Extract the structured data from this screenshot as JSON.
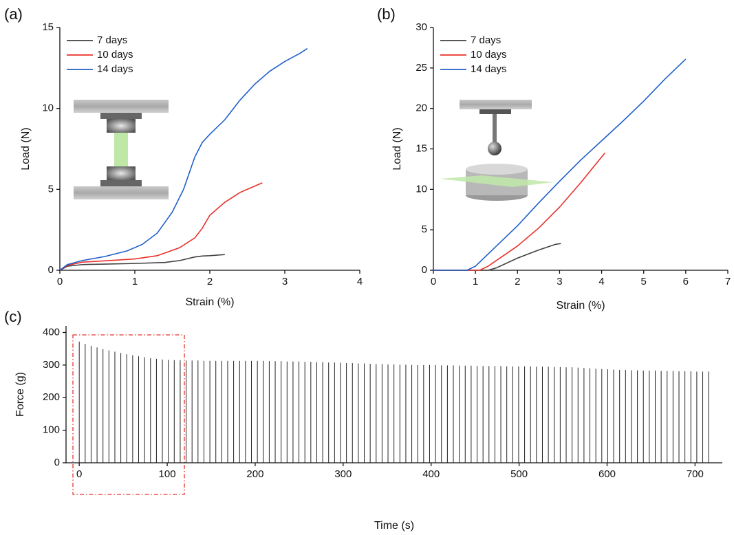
{
  "chart_data": [
    {
      "type": "line",
      "panel_label": "(a)",
      "xlabel": "Strain (%)",
      "ylabel": "Load (N)",
      "xlim": [
        0,
        4
      ],
      "xticks": [
        0,
        1,
        2,
        3,
        4
      ],
      "ylim": [
        0,
        15
      ],
      "yticks": [
        0,
        5,
        10,
        15
      ],
      "grid": false,
      "legend": "upper left",
      "series": [
        {
          "name": "7 days",
          "color": "#404040",
          "x": [
            0,
            0.1,
            0.3,
            0.6,
            1.0,
            1.4,
            1.6,
            1.8,
            1.9,
            2.0,
            2.2
          ],
          "values": [
            0,
            0.25,
            0.35,
            0.38,
            0.42,
            0.48,
            0.6,
            0.82,
            0.88,
            0.9,
            0.97
          ]
        },
        {
          "name": "10 days",
          "color": "#e8302a",
          "x": [
            0,
            0.1,
            0.3,
            0.6,
            1.0,
            1.3,
            1.6,
            1.8,
            1.9,
            2.0,
            2.2,
            2.4,
            2.6,
            2.7
          ],
          "values": [
            0,
            0.3,
            0.5,
            0.58,
            0.7,
            0.9,
            1.4,
            2.0,
            2.6,
            3.4,
            4.2,
            4.8,
            5.2,
            5.4
          ]
        },
        {
          "name": "14 days",
          "color": "#1f5fc8",
          "x": [
            0,
            0.1,
            0.3,
            0.6,
            0.9,
            1.1,
            1.3,
            1.5,
            1.65,
            1.8,
            1.9,
            2.0,
            2.2,
            2.4,
            2.6,
            2.8,
            3.0,
            3.2,
            3.3
          ],
          "values": [
            0,
            0.35,
            0.6,
            0.85,
            1.2,
            1.6,
            2.3,
            3.6,
            5.0,
            7.0,
            7.9,
            8.4,
            9.3,
            10.5,
            11.5,
            12.3,
            12.9,
            13.4,
            13.7
          ]
        }
      ]
    },
    {
      "type": "line",
      "panel_label": "(b)",
      "xlabel": "Strain (%)",
      "ylabel": "Load (N)",
      "xlim": [
        0,
        7
      ],
      "xticks": [
        0,
        1,
        2,
        3,
        4,
        5,
        6,
        7
      ],
      "ylim": [
        0,
        30
      ],
      "yticks": [
        0,
        5,
        10,
        15,
        20,
        25,
        30
      ],
      "grid": false,
      "legend": "upper left",
      "series": [
        {
          "name": "7 days",
          "color": "#404040",
          "x": [
            0,
            1.3,
            1.5,
            2.0,
            2.5,
            2.9,
            3.03
          ],
          "values": [
            0,
            0,
            0.3,
            1.5,
            2.5,
            3.2,
            3.3
          ]
        },
        {
          "name": "10 days",
          "color": "#e8302a",
          "x": [
            0,
            1.1,
            1.3,
            2.0,
            2.5,
            3.0,
            3.5,
            4.0,
            4.08
          ],
          "values": [
            0,
            0,
            0.5,
            3.0,
            5.2,
            7.8,
            10.8,
            14.0,
            14.5
          ]
        },
        {
          "name": "14 days",
          "color": "#1f5fc8",
          "x": [
            0,
            0.8,
            1.0,
            1.5,
            2.0,
            2.5,
            3.0,
            3.5,
            4.0,
            4.5,
            5.0,
            5.5,
            6.0
          ],
          "values": [
            0,
            0,
            0.5,
            3.0,
            5.5,
            8.3,
            11.0,
            13.6,
            16.0,
            18.4,
            20.9,
            23.6,
            26.1
          ]
        }
      ]
    },
    {
      "type": "stem",
      "panel_label": "(c)",
      "xlabel": "Time (s)",
      "ylabel": "Force (g)",
      "xlim": [
        -15,
        731
      ],
      "xticks": [
        0,
        100,
        200,
        300,
        400,
        500,
        600,
        700
      ],
      "ylim": [
        0,
        420
      ],
      "yticks": [
        0,
        100,
        200,
        300,
        400
      ],
      "grid": false,
      "color": "#222222",
      "x": [
        0,
        6.75,
        13.5,
        20.25,
        27,
        33.75,
        40.5,
        47.25,
        54,
        60.75,
        67.5,
        74.25,
        81,
        87.75,
        94.5,
        101.25,
        108,
        114.75,
        121.5,
        128.25,
        135,
        141.75,
        148.5,
        155.25,
        162,
        168.75,
        175.5,
        182.25,
        189,
        195.75,
        202.5,
        209.25,
        216,
        222.75,
        229.5,
        236.25,
        243,
        249.75,
        256.5,
        263.25,
        270,
        276.75,
        283.5,
        290.25,
        297,
        303.75,
        310.5,
        317.25,
        324,
        330.75,
        337.5,
        344.25,
        351,
        357.75,
        364.5,
        371.25,
        378,
        384.75,
        391.5,
        398.25,
        405,
        411.75,
        418.5,
        425.25,
        432,
        438.75,
        445.5,
        452.25,
        459,
        465.75,
        472.5,
        479.25,
        486,
        492.75,
        499.5,
        506.25,
        513,
        519.75,
        526.5,
        533.25,
        540,
        546.75,
        553.5,
        560.25,
        567,
        573.75,
        580.5,
        587.25,
        594,
        600.75,
        607.5,
        614.25,
        621,
        627.75,
        634.5,
        641.25,
        648,
        654.75,
        661.5,
        668.25,
        675,
        681.75,
        688.5,
        695.25,
        702,
        708.75,
        715.5
      ],
      "values": [
        372,
        365,
        359,
        354,
        349,
        345,
        341,
        337,
        333,
        330,
        327,
        324,
        321,
        319,
        317,
        316,
        315,
        315,
        314,
        314,
        314,
        313,
        313,
        313,
        313,
        313,
        313,
        313,
        313,
        313,
        313,
        313,
        312,
        312,
        312,
        311,
        311,
        311,
        310,
        310,
        309,
        309,
        308,
        308,
        307,
        306,
        306,
        305,
        305,
        304,
        303,
        303,
        302,
        302,
        301,
        301,
        300,
        300,
        300,
        300,
        300,
        299,
        299,
        299,
        298,
        298,
        298,
        297,
        297,
        297,
        297,
        297,
        296,
        296,
        296,
        296,
        296,
        295,
        295,
        295,
        294,
        294,
        293,
        293,
        292,
        291,
        290,
        289,
        288,
        287,
        286,
        285,
        285,
        284,
        284,
        283,
        283,
        283,
        282,
        282,
        282,
        281,
        281,
        281,
        280,
        280,
        280
      ]
    }
  ]
}
